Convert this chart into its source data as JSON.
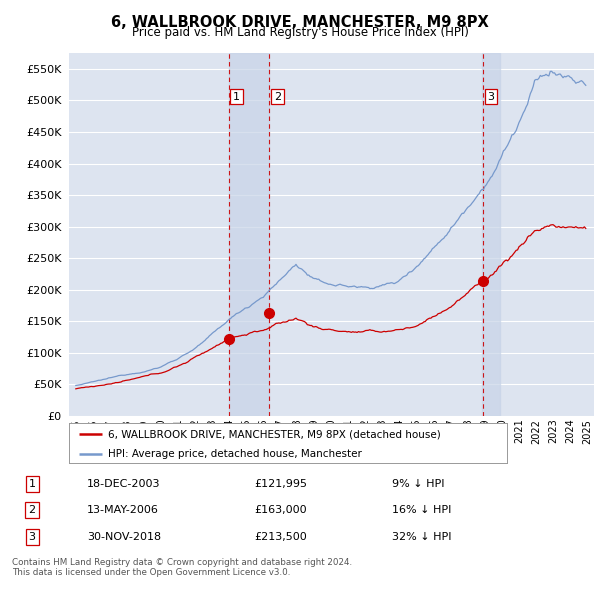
{
  "title": "6, WALLBROOK DRIVE, MANCHESTER, M9 8PX",
  "subtitle": "Price paid vs. HM Land Registry's House Price Index (HPI)",
  "red_line_label": "6, WALLBROOK DRIVE, MANCHESTER, M9 8PX (detached house)",
  "blue_line_label": "HPI: Average price, detached house, Manchester",
  "transactions": [
    {
      "num": 1,
      "date": "18-DEC-2003",
      "date_val": 2003.97,
      "price": 121995,
      "label": "£121,995",
      "pct": "9% ↓ HPI"
    },
    {
      "num": 2,
      "date": "13-MAY-2006",
      "date_val": 2006.36,
      "price": 163000,
      "label": "£163,000",
      "pct": "16% ↓ HPI"
    },
    {
      "num": 3,
      "date": "30-NOV-2018",
      "date_val": 2018.91,
      "price": 213500,
      "label": "£213,500",
      "pct": "32% ↓ HPI"
    }
  ],
  "footer": "Contains HM Land Registry data © Crown copyright and database right 2024.\nThis data is licensed under the Open Government Licence v3.0.",
  "yticks": [
    0,
    50000,
    100000,
    150000,
    200000,
    250000,
    300000,
    350000,
    400000,
    450000,
    500000,
    550000
  ],
  "ylim": [
    0,
    575000
  ],
  "xlim_start": 1994.6,
  "xlim_end": 2025.4,
  "background_color": "#ffffff",
  "plot_bg_color": "#dde4f0",
  "grid_color": "#ffffff",
  "red_color": "#cc0000",
  "blue_color": "#7799cc",
  "shade_color": "#c8d4e8",
  "vline_color": "#cc0000"
}
